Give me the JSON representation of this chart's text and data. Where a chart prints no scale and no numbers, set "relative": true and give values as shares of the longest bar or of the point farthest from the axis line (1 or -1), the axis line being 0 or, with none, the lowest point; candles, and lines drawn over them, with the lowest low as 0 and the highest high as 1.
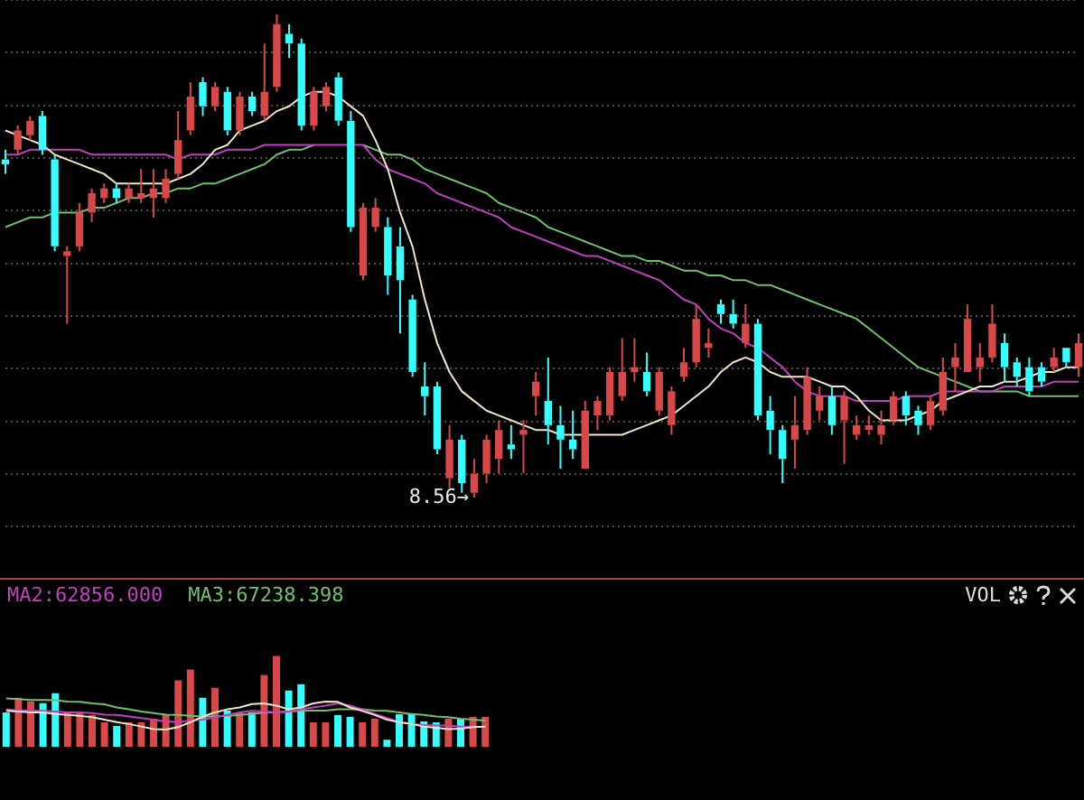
{
  "chart_data": [
    {
      "type": "candlestick",
      "relative": true,
      "grid": "y",
      "marker": "none",
      "categories": [
        null,
        null,
        null,
        null,
        null,
        null,
        null,
        null,
        null,
        null,
        null,
        null,
        null,
        null,
        null,
        null,
        null,
        null,
        null,
        null,
        null,
        null,
        null,
        null,
        null,
        null,
        null,
        null,
        null,
        null,
        null,
        null,
        null,
        null,
        null,
        null,
        null,
        null,
        null,
        null,
        null,
        null,
        null,
        null,
        null,
        null,
        null,
        null,
        null,
        null,
        null,
        null,
        null,
        null,
        null,
        null,
        null,
        null,
        null,
        null,
        null,
        null,
        null,
        null,
        null,
        null,
        null,
        null,
        null,
        null,
        null,
        null,
        null,
        null,
        null,
        null,
        null,
        null,
        null,
        null,
        null,
        null,
        null,
        null,
        null,
        null,
        null,
        null
      ],
      "ohlc": [
        [
          0.7,
          0.72,
          0.67,
          0.69
        ],
        [
          0.72,
          0.77,
          0.71,
          0.76
        ],
        [
          0.75,
          0.79,
          0.74,
          0.78
        ],
        [
          0.79,
          0.8,
          0.71,
          0.72
        ],
        [
          0.7,
          0.71,
          0.51,
          0.52
        ],
        [
          0.5,
          0.52,
          0.36,
          0.51
        ],
        [
          0.52,
          0.61,
          0.51,
          0.59
        ],
        [
          0.59,
          0.64,
          0.57,
          0.63
        ],
        [
          0.62,
          0.65,
          0.61,
          0.64
        ],
        [
          0.64,
          0.65,
          0.61,
          0.62
        ],
        [
          0.62,
          0.65,
          0.61,
          0.64
        ],
        [
          0.62,
          0.68,
          0.61,
          0.63
        ],
        [
          0.62,
          0.68,
          0.58,
          0.64
        ],
        [
          0.62,
          0.68,
          0.61,
          0.66
        ],
        [
          0.67,
          0.8,
          0.66,
          0.74
        ],
        [
          0.76,
          0.86,
          0.75,
          0.83
        ],
        [
          0.86,
          0.87,
          0.79,
          0.81
        ],
        [
          0.81,
          0.86,
          0.8,
          0.85
        ],
        [
          0.84,
          0.85,
          0.75,
          0.76
        ],
        [
          0.76,
          0.84,
          0.75,
          0.83
        ],
        [
          0.83,
          0.84,
          0.79,
          0.8
        ],
        [
          0.79,
          0.94,
          0.78,
          0.84
        ],
        [
          0.85,
          1,
          0.84,
          0.98
        ],
        [
          0.96,
          0.98,
          0.91,
          0.94
        ],
        [
          0.94,
          0.95,
          0.76,
          0.77
        ],
        [
          0.77,
          0.85,
          0.76,
          0.84
        ],
        [
          0.81,
          0.86,
          0.8,
          0.85
        ],
        [
          0.87,
          0.88,
          0.77,
          0.78
        ],
        [
          0.78,
          0.8,
          0.55,
          0.56
        ],
        [
          0.46,
          0.61,
          0.45,
          0.6
        ],
        [
          0.56,
          0.62,
          0.55,
          0.6
        ],
        [
          0.56,
          0.58,
          0.42,
          0.46
        ],
        [
          0.52,
          0.56,
          0.34,
          0.45
        ],
        [
          0.41,
          0.42,
          0.25,
          0.26
        ],
        [
          0.23,
          0.28,
          0.17,
          0.21
        ],
        [
          0.23,
          0.24,
          0.09,
          0.1
        ],
        [
          0.04,
          0.15,
          0.02,
          0.12
        ],
        [
          0.12,
          0.13,
          0.01,
          0.03
        ],
        [
          0.01,
          0.08,
          0,
          0.05
        ],
        [
          0.05,
          0.13,
          0.03,
          0.12
        ],
        [
          0.08,
          0.16,
          0.05,
          0.14
        ],
        [
          0.11,
          0.15,
          0.08,
          0.1
        ],
        [
          0.13,
          0.16,
          0.05,
          0.14
        ],
        [
          0.21,
          0.26,
          0.17,
          0.24
        ],
        [
          0.2,
          0.29,
          0.11,
          0.15
        ],
        [
          0.15,
          0.19,
          0.06,
          0.12
        ],
        [
          0.12,
          0.18,
          0.08,
          0.1
        ],
        [
          0.06,
          0.2,
          0.06,
          0.18
        ],
        [
          0.17,
          0.21,
          0.14,
          0.2
        ],
        [
          0.17,
          0.27,
          0.16,
          0.26
        ],
        [
          0.21,
          0.33,
          0.2,
          0.26
        ],
        [
          0.26,
          0.33,
          0.24,
          0.27
        ],
        [
          0.26,
          0.3,
          0.21,
          0.22
        ],
        [
          0.18,
          0.27,
          0.17,
          0.26
        ],
        [
          0.15,
          0.23,
          0.13,
          0.22
        ],
        [
          0.25,
          0.31,
          0.24,
          0.28
        ],
        [
          0.28,
          0.4,
          0.27,
          0.37
        ],
        [
          0.31,
          0.35,
          0.29,
          0.32
        ],
        [
          0.4,
          0.41,
          0.36,
          0.38
        ],
        [
          0.38,
          0.41,
          0.35,
          0.36
        ],
        [
          0.32,
          0.4,
          0.31,
          0.36
        ],
        [
          0.36,
          0.37,
          0.16,
          0.17
        ],
        [
          0.18,
          0.21,
          0.09,
          0.14
        ],
        [
          0.14,
          0.15,
          0.03,
          0.08
        ],
        [
          0.12,
          0.21,
          0.06,
          0.15
        ],
        [
          0.14,
          0.27,
          0.13,
          0.25
        ],
        [
          0.18,
          0.23,
          0.16,
          0.21
        ],
        [
          0.21,
          0.23,
          0.13,
          0.15
        ],
        [
          0.16,
          0.22,
          0.07,
          0.21
        ],
        [
          0.13,
          0.17,
          0.12,
          0.15
        ],
        [
          0.14,
          0.17,
          0.13,
          0.15
        ],
        [
          0.13,
          0.18,
          0.11,
          0.15
        ],
        [
          0.16,
          0.22,
          0.15,
          0.21
        ],
        [
          0.21,
          0.22,
          0.15,
          0.17
        ],
        [
          0.18,
          0.19,
          0.13,
          0.15
        ],
        [
          0.15,
          0.21,
          0.14,
          0.2
        ],
        [
          0.18,
          0.29,
          0.17,
          0.26
        ],
        [
          0.27,
          0.32,
          0.22,
          0.29
        ],
        [
          0.26,
          0.4,
          0.26,
          0.37
        ],
        [
          0.27,
          0.32,
          0.24,
          0.29
        ],
        [
          0.29,
          0.4,
          0.28,
          0.36
        ],
        [
          0.32,
          0.34,
          0.24,
          0.27
        ],
        [
          0.28,
          0.29,
          0.23,
          0.25
        ],
        [
          0.27,
          0.29,
          0.21,
          0.22
        ],
        [
          0.27,
          0.28,
          0.23,
          0.24
        ],
        [
          0.27,
          0.31,
          0.26,
          0.29
        ],
        [
          0.31,
          0.31,
          0.27,
          0.28
        ],
        [
          0.27,
          0.34,
          0.25,
          0.32
        ]
      ],
      "colors": [
        "#33ffff",
        "#d84848",
        "#d84848",
        "#33ffff",
        "#33ffff",
        "#d84848",
        "#d84848",
        "#d84848",
        "#d84848",
        "#33ffff",
        "#d84848",
        "#d84848",
        "#d84848",
        "#d84848",
        "#d84848",
        "#d84848",
        "#33ffff",
        "#d84848",
        "#33ffff",
        "#d84848",
        "#33ffff",
        "#d84848",
        "#d84848",
        "#33ffff",
        "#33ffff",
        "#d84848",
        "#d84848",
        "#33ffff",
        "#33ffff",
        "#d84848",
        "#d84848",
        "#33ffff",
        "#33ffff",
        "#33ffff",
        "#33ffff",
        "#33ffff",
        "#d84848",
        "#33ffff",
        "#d84848",
        "#d84848",
        "#d84848",
        "#33ffff",
        "#d84848",
        "#d84848",
        "#33ffff",
        "#33ffff",
        "#33ffff",
        "#d84848",
        "#d84848",
        "#d84848",
        "#d84848",
        "#d84848",
        "#33ffff",
        "#d84848",
        "#d84848",
        "#d84848",
        "#d84848",
        "#d84848",
        "#33ffff",
        "#33ffff",
        "#d84848",
        "#33ffff",
        "#33ffff",
        "#33ffff",
        "#d84848",
        "#d84848",
        "#d84848",
        "#33ffff",
        "#d84848",
        "#d84848",
        "#d84848",
        "#d84848",
        "#d84848",
        "#33ffff",
        "#33ffff",
        "#d84848",
        "#d84848",
        "#d84848",
        "#d84848",
        "#d84848",
        "#d84848",
        "#33ffff",
        "#33ffff",
        "#33ffff",
        "#33ffff",
        "#d84848",
        "#33ffff",
        "#d84848"
      ],
      "series": [
        {
          "type": "line",
          "color": "#f0e6c8",
          "values": [
            0.76,
            0.75,
            0.74,
            0.73,
            0.71,
            0.7,
            0.69,
            0.68,
            0.67,
            0.65,
            0.65,
            0.65,
            0.65,
            0.65,
            0.66,
            0.67,
            0.69,
            0.72,
            0.73,
            0.76,
            0.77,
            0.78,
            0.8,
            0.81,
            0.83,
            0.84,
            0.84,
            0.83,
            0.81,
            0.79,
            0.74,
            0.68,
            0.59,
            0.52,
            0.41,
            0.32,
            0.26,
            0.22,
            0.2,
            0.18,
            0.17,
            0.16,
            0.15,
            0.14,
            0.14,
            0.13,
            0.13,
            0.13,
            0.13,
            0.13,
            0.13,
            0.14,
            0.15,
            0.16,
            0.17,
            0.19,
            0.21,
            0.23,
            0.26,
            0.28,
            0.29,
            0.28,
            0.26,
            0.25,
            0.25,
            0.25,
            0.24,
            0.23,
            0.23,
            0.21,
            0.18,
            0.16,
            0.16,
            0.16,
            0.17,
            0.18,
            0.2,
            0.21,
            0.22,
            0.23,
            0.23,
            0.24,
            0.24,
            0.25,
            0.26,
            0.26,
            0.27,
            0.27
          ]
        },
        {
          "type": "line",
          "color": "#c040c0",
          "values": [
            0.71,
            0.71,
            0.72,
            0.72,
            0.72,
            0.72,
            0.72,
            0.71,
            0.71,
            0.71,
            0.71,
            0.71,
            0.71,
            0.71,
            0.7,
            0.71,
            0.71,
            0.71,
            0.72,
            0.72,
            0.72,
            0.73,
            0.73,
            0.73,
            0.73,
            0.73,
            0.73,
            0.73,
            0.73,
            0.73,
            0.7,
            0.68,
            0.67,
            0.66,
            0.65,
            0.63,
            0.62,
            0.61,
            0.6,
            0.59,
            0.58,
            0.56,
            0.55,
            0.54,
            0.53,
            0.52,
            0.51,
            0.5,
            0.5,
            0.49,
            0.48,
            0.47,
            0.46,
            0.45,
            0.43,
            0.41,
            0.4,
            0.37,
            0.35,
            0.34,
            0.32,
            0.31,
            0.29,
            0.27,
            0.24,
            0.22,
            0.21,
            0.21,
            0.21,
            0.2,
            0.2,
            0.2,
            0.2,
            0.21,
            0.21,
            0.21,
            0.22,
            0.22,
            0.22,
            0.22,
            0.22,
            0.23,
            0.23,
            0.23,
            0.23,
            0.24,
            0.24,
            0.24
          ]
        },
        {
          "type": "line",
          "color": "#70c070",
          "values": [
            0.56,
            0.57,
            0.58,
            0.58,
            0.59,
            0.59,
            0.59,
            0.6,
            0.6,
            0.61,
            0.62,
            0.62,
            0.63,
            0.63,
            0.64,
            0.64,
            0.65,
            0.65,
            0.66,
            0.67,
            0.68,
            0.69,
            0.71,
            0.72,
            0.72,
            0.73,
            null,
            null,
            null,
            0.73,
            0.72,
            0.71,
            0.71,
            0.7,
            0.68,
            0.67,
            0.66,
            0.65,
            0.64,
            0.63,
            0.61,
            0.6,
            0.59,
            0.58,
            0.56,
            0.55,
            0.54,
            0.53,
            0.52,
            0.51,
            0.5,
            0.5,
            0.49,
            0.49,
            0.48,
            0.47,
            0.47,
            0.46,
            0.46,
            0.45,
            0.45,
            0.44,
            0.44,
            0.43,
            0.42,
            0.41,
            0.4,
            0.39,
            0.38,
            0.37,
            0.35,
            0.33,
            0.31,
            0.29,
            0.27,
            0.26,
            0.25,
            0.24,
            0.23,
            0.22,
            0.22,
            0.22,
            0.22,
            0.21,
            0.21,
            0.21,
            0.21,
            0.21
          ]
        }
      ],
      "annotations": [
        "8.56→"
      ]
    },
    {
      "type": "bar",
      "relative": true,
      "annotations": [
        "VOL"
      ],
      "categories": [
        null,
        null,
        null,
        null,
        null,
        null,
        null,
        null,
        null,
        null,
        null,
        null,
        null,
        null,
        null,
        null,
        null,
        null,
        null,
        null,
        null,
        null,
        null,
        null,
        null,
        null,
        null,
        null,
        null,
        null,
        null,
        null,
        null,
        null,
        null,
        null,
        null,
        null,
        null,
        null
      ],
      "values": [
        0.38,
        0.54,
        0.5,
        0.48,
        0.59,
        0.38,
        0.38,
        0.35,
        0.27,
        0.23,
        0.27,
        0.27,
        0.31,
        0.36,
        0.73,
        0.85,
        0.54,
        0.65,
        0.4,
        0.38,
        0.38,
        0.79,
        1,
        0.62,
        0.69,
        0.27,
        0.27,
        0.35,
        0.33,
        0.27,
        0.31,
        0.08,
        0.36,
        0.36,
        0.28,
        0.27,
        0.31,
        0.31,
        0.33,
        0.33
      ],
      "colors": [
        "#33ffff",
        "#d84848",
        "#d84848",
        "#33ffff",
        "#33ffff",
        "#d84848",
        "#d84848",
        "#d84848",
        "#d84848",
        "#33ffff",
        "#d84848",
        "#d84848",
        "#d84848",
        "#d84848",
        "#d84848",
        "#d84848",
        "#33ffff",
        "#d84848",
        "#33ffff",
        "#d84848",
        "#33ffff",
        "#d84848",
        "#d84848",
        "#33ffff",
        "#33ffff",
        "#d84848",
        "#d84848",
        "#33ffff",
        "#33ffff",
        "#d84848",
        "#d84848",
        "#33ffff",
        "#33ffff",
        "#33ffff",
        "#33ffff",
        "#33ffff",
        "#d84848",
        "#33ffff",
        "#d84848",
        "#d84848"
      ]
    },
    {
      "type": "line",
      "relative": true,
      "marker": "none",
      "categories": [
        null,
        null,
        null,
        null,
        null,
        null,
        null,
        null,
        null,
        null,
        null,
        null,
        null,
        null,
        null,
        null,
        null,
        null,
        null,
        null,
        null,
        null,
        null,
        null,
        null,
        null,
        null,
        null,
        null,
        null,
        null,
        null,
        null,
        null,
        null,
        null,
        null,
        null,
        null,
        null
      ],
      "series": [
        {
          "color": "#f0e6c8",
          "values": [
            0.6,
            0.58,
            0.55,
            0.55,
            0.5,
            0.47,
            0.44,
            0.4,
            0.32,
            0.24,
            0.18,
            0.1,
            0.02,
            0,
            0.08,
            0.24,
            0.42,
            0.55,
            0.65,
            0.71,
            0.82,
            0.84,
            0.77,
            0.65,
            0.71,
            0.84,
            0.9,
            0.89,
            0.71,
            0.6,
            0.47,
            0.32,
            0.24,
            0.18,
            0.1,
            0.06,
            0.02,
            0.03,
            0.08,
            0.1
          ]
        },
        {
          "name": "MA2:62856.000",
          "color": "#c040c0",
          "values": [
            0.65,
            0.61,
            0.61,
            0.6,
            0.58,
            0.55,
            0.55,
            0.53,
            0.48,
            0.47,
            0.42,
            0.37,
            0.32,
            0.26,
            0.24,
            0.29,
            0.32,
            0.4,
            0.47,
            0.55,
            0.6,
            0.58,
            0.55,
            0.58,
            0.65,
            0.71,
            0.77,
            0.84,
            0.77,
            0.65,
            0.5,
            0.37,
            0.24,
            0.18,
            0.15,
            0.13,
            0.13,
            0.1,
            0.1,
            0.08
          ]
        },
        {
          "name": "MA3:67238.398",
          "color": "#70c070",
          "values": [
            1,
            0.98,
            0.95,
            0.95,
            0.94,
            0.9,
            0.89,
            0.84,
            0.81,
            0.71,
            0.65,
            0.58,
            0.53,
            0.48,
            0.47,
            0.44,
            0.42,
            0.42,
            0.44,
            0.47,
            0.5,
            0.55,
            0.55,
            0.58,
            0.6,
            0.61,
            0.61,
            0.65,
            0.65,
            0.65,
            0.61,
            0.6,
            0.55,
            0.5,
            0.47,
            0.42,
            0.4,
            0.35,
            0.32,
            0.29
          ]
        }
      ]
    }
  ]
}
